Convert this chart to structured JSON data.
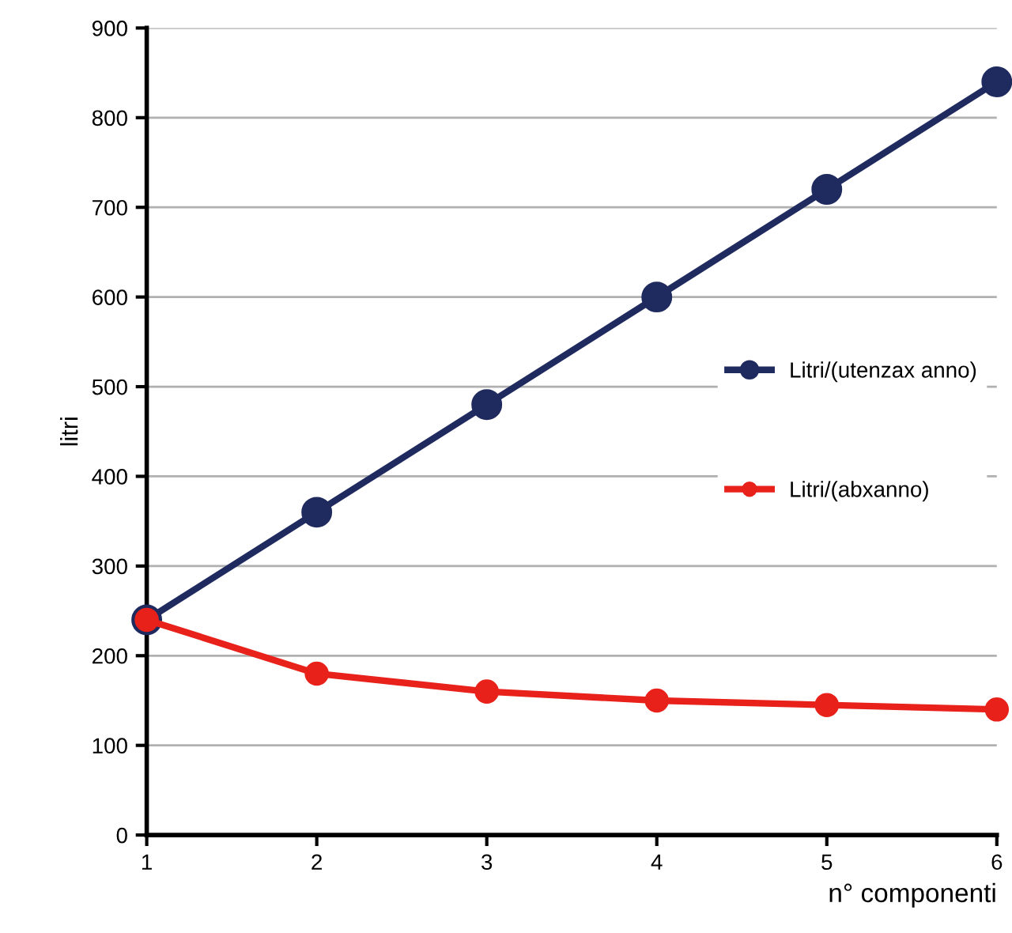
{
  "chart_data": {
    "type": "line",
    "xlabel": "n° componenti",
    "ylabel": "litri",
    "x": [
      1,
      2,
      3,
      4,
      5,
      6
    ],
    "xlim": [
      1,
      6
    ],
    "xticks": [
      1,
      2,
      3,
      4,
      5,
      6
    ],
    "ylim": [
      0,
      900
    ],
    "yticks": [
      0,
      100,
      200,
      300,
      400,
      500,
      600,
      700,
      800,
      900
    ],
    "series": [
      {
        "name": "Litri/(utenzax anno)",
        "color": "#1f2a5e",
        "values": [
          240,
          360,
          480,
          600,
          720,
          840
        ]
      },
      {
        "name": "Litri/(abxanno)",
        "color": "#e8211b",
        "values": [
          240,
          180,
          160,
          150,
          145,
          140
        ]
      }
    ],
    "grid": "y",
    "legend": "right",
    "marker": "circle",
    "line_style": "solid"
  }
}
